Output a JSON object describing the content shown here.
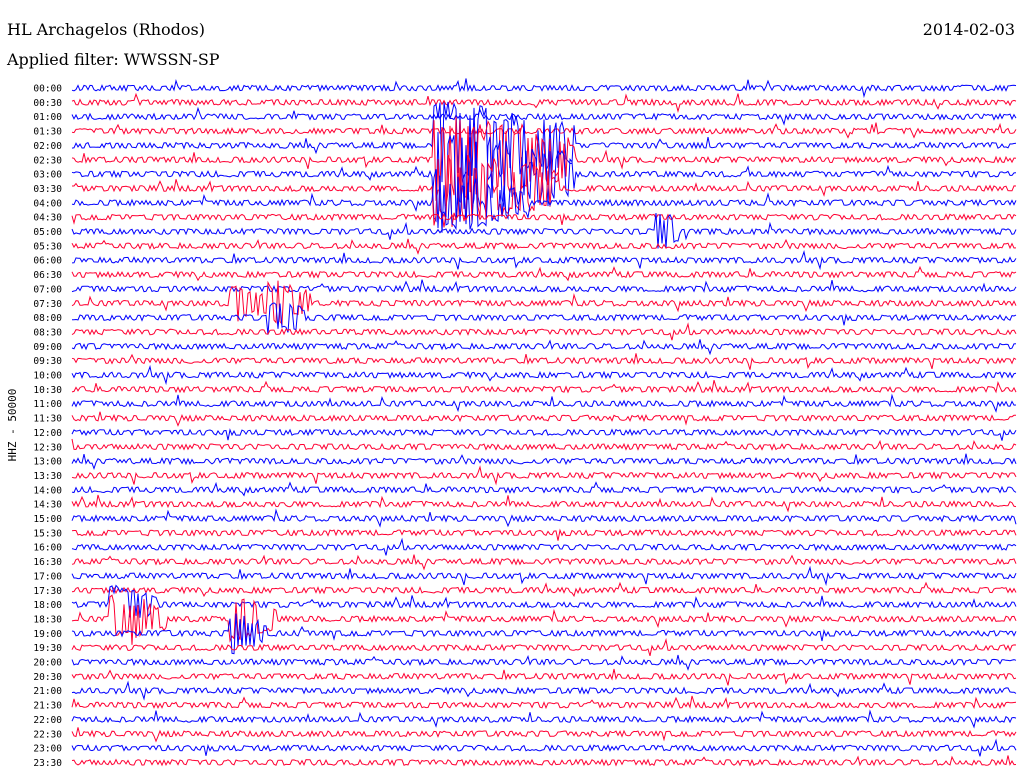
{
  "header": {
    "station": "HL Archagelos (Rhodos)",
    "date": "2014-02-03",
    "filter": "Applied filter: WWSSN-SP"
  },
  "chart_data": {
    "type": "line",
    "title": "HL Archagelos (Rhodos)",
    "ylabel": "HHZ - 50000",
    "xlabel": "",
    "colors": [
      "#0000ff",
      "#ff0033"
    ],
    "rows": [
      "00:00",
      "00:30",
      "01:00",
      "01:30",
      "02:00",
      "02:30",
      "03:00",
      "03:30",
      "04:00",
      "04:30",
      "05:00",
      "05:30",
      "06:00",
      "06:30",
      "07:00",
      "07:30",
      "08:00",
      "08:30",
      "09:00",
      "09:30",
      "10:00",
      "10:30",
      "11:00",
      "11:30",
      "12:00",
      "12:30",
      "13:00",
      "13:30",
      "14:00",
      "14:30",
      "15:00",
      "15:30",
      "16:00",
      "16:30",
      "17:00",
      "17:30",
      "18:00",
      "18:30",
      "19:00",
      "19:30",
      "20:00",
      "20:30",
      "21:00",
      "21:30",
      "22:00",
      "22:30",
      "23:00",
      "23:30"
    ],
    "events": [
      {
        "row": "02:00",
        "minute": 11.5,
        "amplitude": 6,
        "duration_min": 4.5
      },
      {
        "row": "02:30",
        "minute": 11.5,
        "amplitude": 6,
        "duration_min": 4.5
      },
      {
        "row": "03:00",
        "minute": 11.5,
        "amplitude": 6,
        "duration_min": 4.5
      },
      {
        "row": "03:30",
        "minute": 11.5,
        "amplitude": 5,
        "duration_min": 4
      },
      {
        "row": "04:00",
        "minute": 11.5,
        "amplitude": 4,
        "duration_min": 3
      },
      {
        "row": "05:00",
        "minute": 18.5,
        "amplitude": 2.5,
        "duration_min": 0.8
      },
      {
        "row": "07:30",
        "minute": 5,
        "amplitude": 2.5,
        "duration_min": 1.2
      },
      {
        "row": "07:30",
        "minute": 6.2,
        "amplitude": 3,
        "duration_min": 1.4
      },
      {
        "row": "08:00",
        "minute": 6.2,
        "amplitude": 2.5,
        "duration_min": 1.2
      },
      {
        "row": "18:00",
        "minute": 1.2,
        "amplitude": 2.5,
        "duration_min": 1.5
      },
      {
        "row": "18:30",
        "minute": 1.2,
        "amplitude": 3,
        "duration_min": 1.8
      },
      {
        "row": "18:30",
        "minute": 5,
        "amplitude": 3,
        "duration_min": 1.5
      },
      {
        "row": "19:00",
        "minute": 5,
        "amplitude": 2.5,
        "duration_min": 1.2
      }
    ]
  }
}
